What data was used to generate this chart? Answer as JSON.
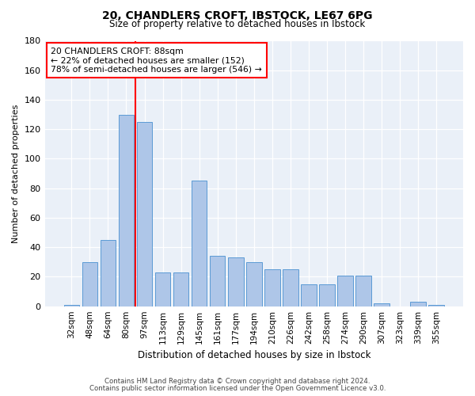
{
  "title1": "20, CHANDLERS CROFT, IBSTOCK, LE67 6PG",
  "title2": "Size of property relative to detached houses in Ibstock",
  "xlabel": "Distribution of detached houses by size in Ibstock",
  "ylabel": "Number of detached properties",
  "categories": [
    "32sqm",
    "48sqm",
    "64sqm",
    "80sqm",
    "97sqm",
    "113sqm",
    "129sqm",
    "145sqm",
    "161sqm",
    "177sqm",
    "194sqm",
    "210sqm",
    "226sqm",
    "242sqm",
    "258sqm",
    "274sqm",
    "290sqm",
    "307sqm",
    "323sqm",
    "339sqm",
    "355sqm"
  ],
  "bar_heights": [
    1,
    30,
    45,
    130,
    125,
    23,
    23,
    85,
    34,
    33,
    30,
    25,
    25,
    15,
    15,
    21,
    21,
    2,
    0,
    3,
    1
  ],
  "bar_color": "#aec6e8",
  "bar_edge_color": "#5b9bd5",
  "vline_color": "red",
  "vline_pos": 3.5,
  "annotation_text": "20 CHANDLERS CROFT: 88sqm\n← 22% of detached houses are smaller (152)\n78% of semi-detached houses are larger (546) →",
  "annotation_box_color": "white",
  "annotation_box_edge": "red",
  "ylim": [
    0,
    180
  ],
  "yticks": [
    0,
    20,
    40,
    60,
    80,
    100,
    120,
    140,
    160,
    180
  ],
  "footer1": "Contains HM Land Registry data © Crown copyright and database right 2024.",
  "footer2": "Contains public sector information licensed under the Open Government Licence v3.0.",
  "bg_color": "#eaf0f8"
}
